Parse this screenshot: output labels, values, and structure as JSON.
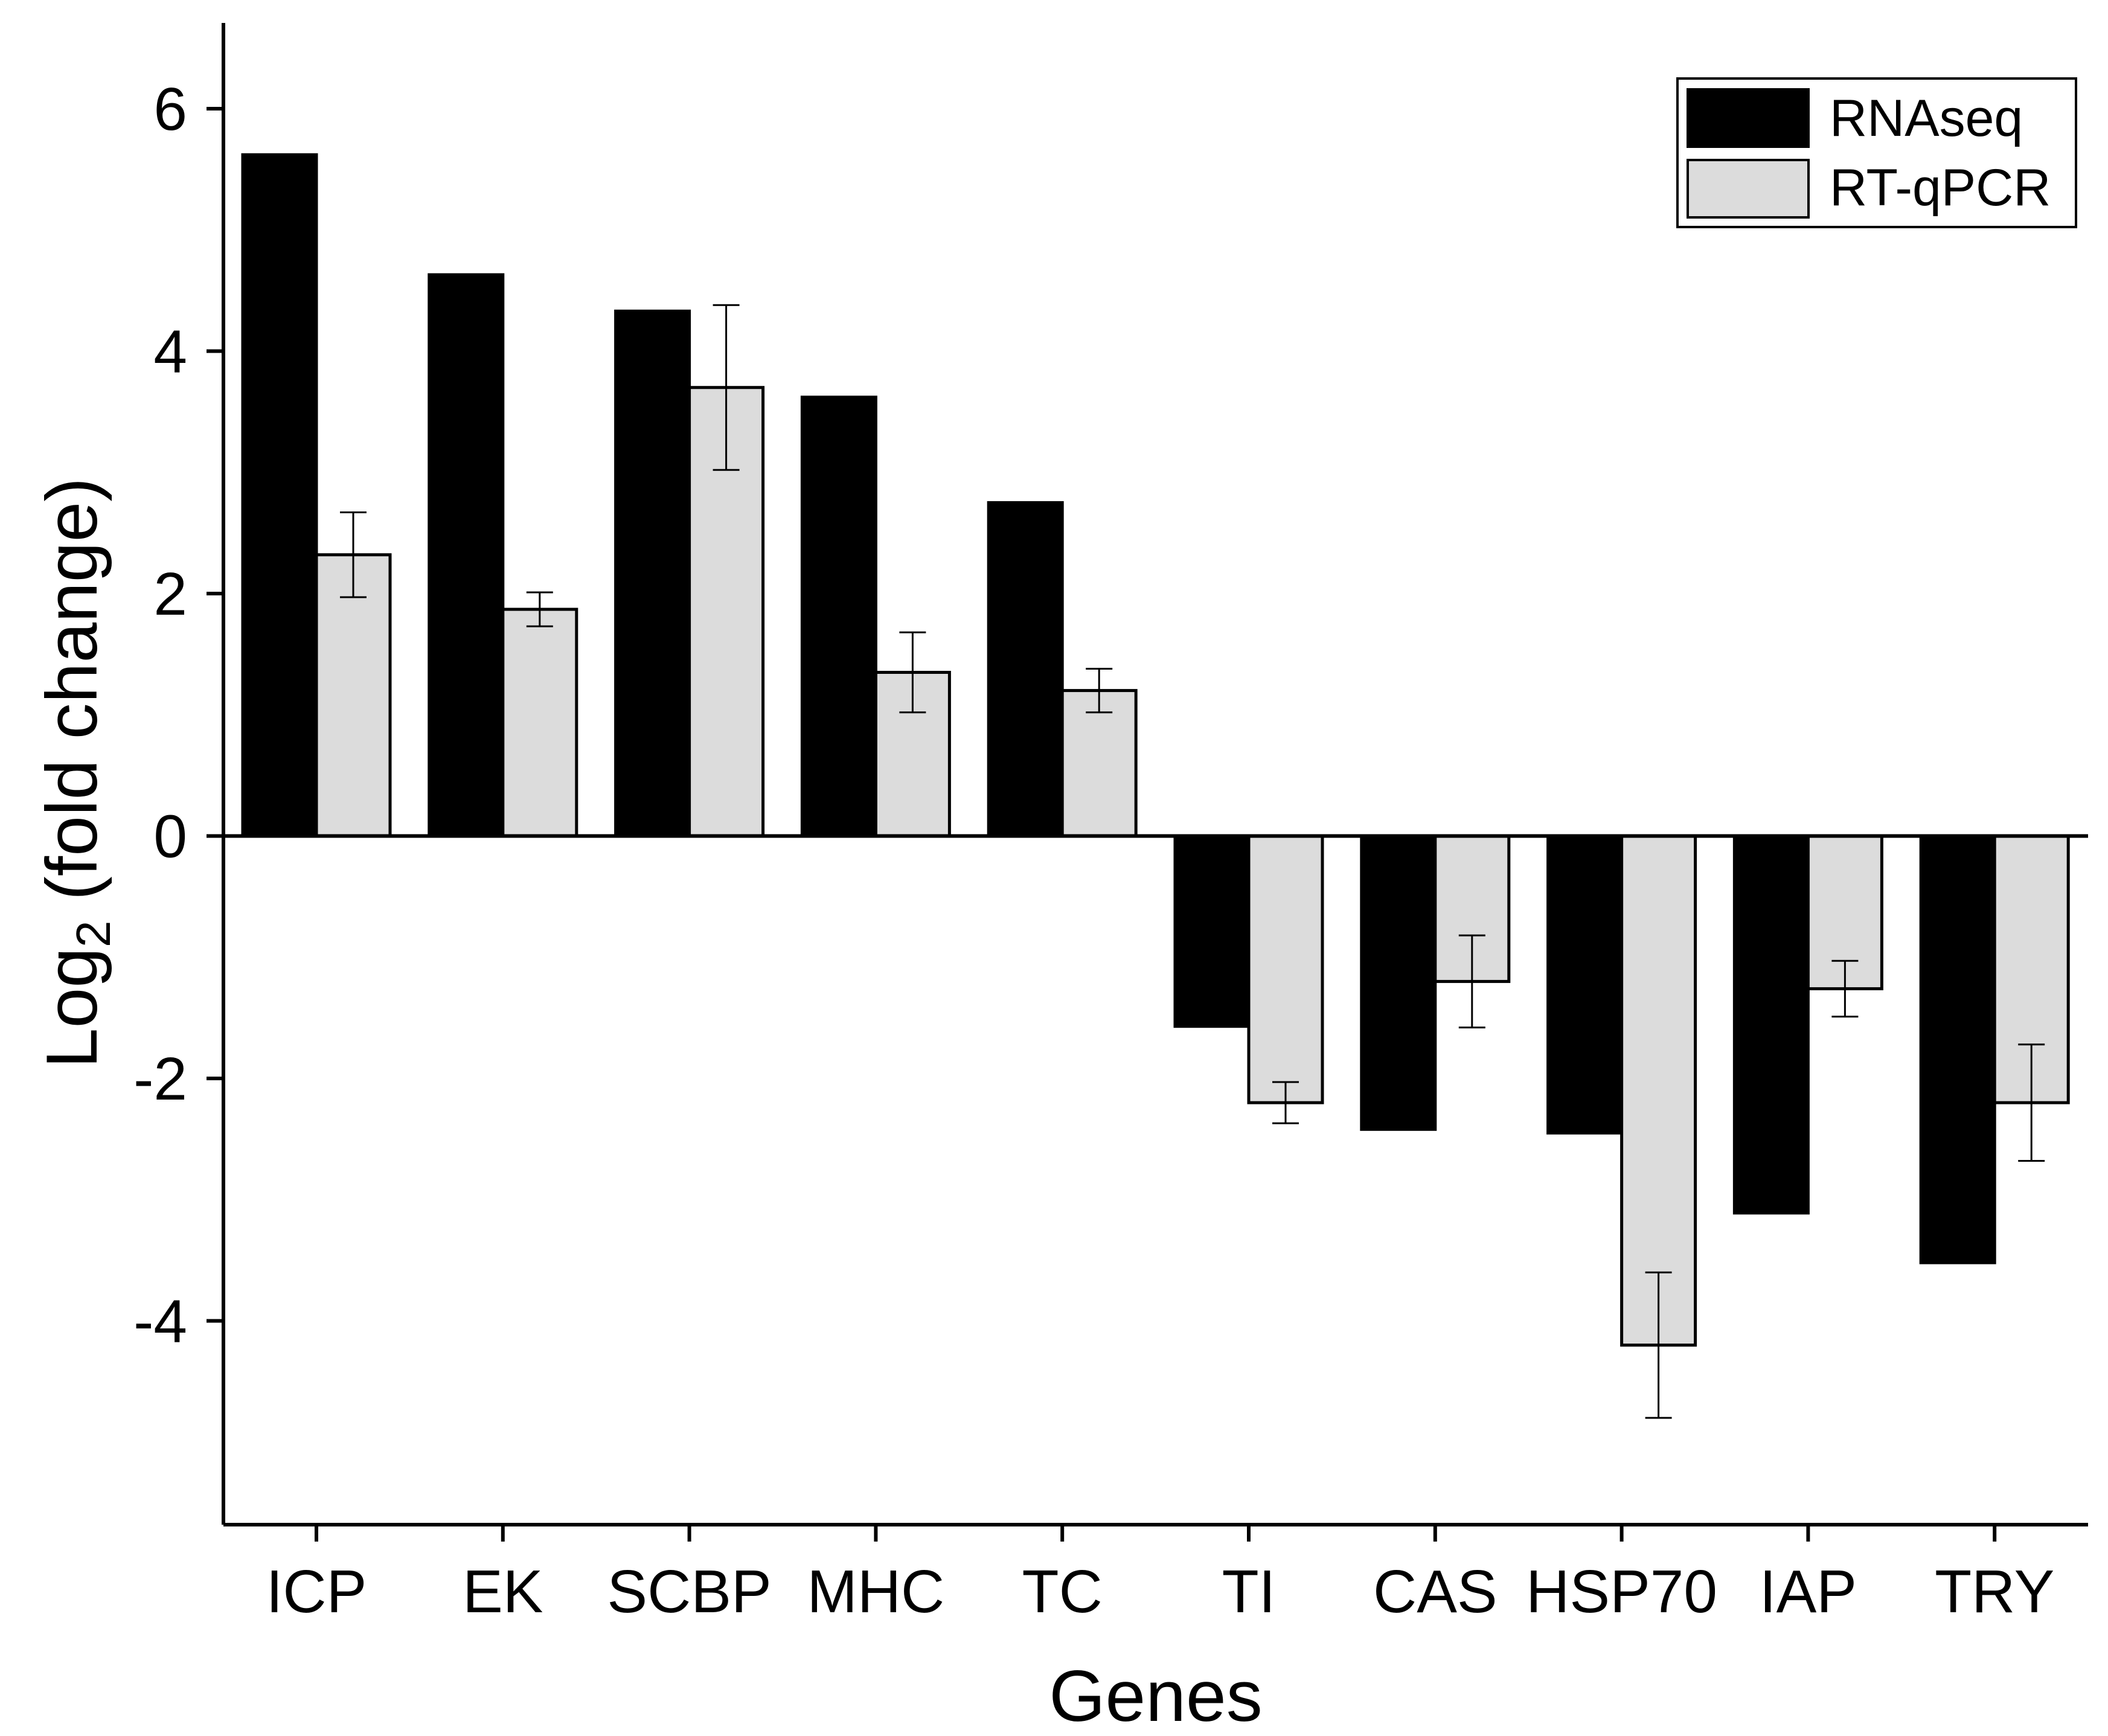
{
  "chart_data": {
    "type": "bar",
    "title": "",
    "xlabel": "Genes",
    "ylabel": {
      "prefix": "Log",
      "subscript": "2",
      "suffix": " (fold change)"
    },
    "ylim": [
      -5.7,
      6.7
    ],
    "yticks": [
      6,
      4,
      2,
      0,
      -2,
      -4
    ],
    "ytick_labels": [
      "6",
      "4",
      "2",
      "0",
      "-2",
      "-4"
    ],
    "grid": false,
    "legend_position": "top-right",
    "categories": [
      "ICP",
      "EK",
      "SCBP",
      "MHC",
      "TC",
      "TI",
      "CAS",
      "HSP70",
      "IAP",
      "TRY"
    ],
    "series": [
      {
        "name": "RNAseq",
        "color": "#000000",
        "values": [
          5.62,
          4.63,
          4.33,
          3.62,
          2.75,
          -1.57,
          -2.42,
          -2.45,
          -3.11,
          -3.52
        ]
      },
      {
        "name": "RT-qPCR",
        "color": "#dcdcdc",
        "values": [
          2.32,
          1.87,
          3.7,
          1.35,
          1.2,
          -2.2,
          -1.2,
          -4.2,
          -1.26,
          -2.2
        ],
        "errors": [
          0.35,
          0.14,
          0.68,
          0.33,
          0.18,
          0.17,
          0.38,
          0.6,
          0.23,
          0.48
        ]
      }
    ]
  }
}
